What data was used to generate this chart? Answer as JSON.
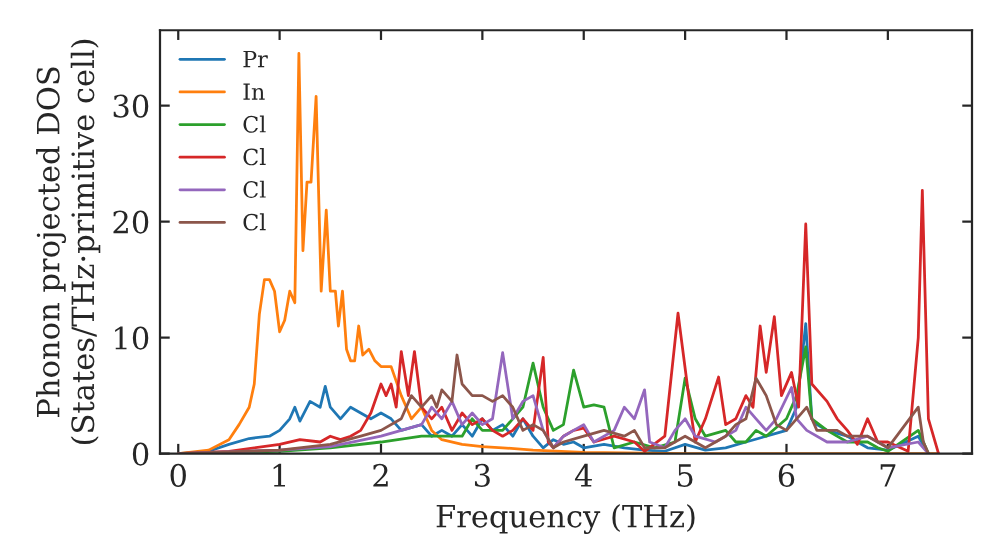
{
  "chart_data": {
    "type": "line",
    "xlabel": "Frequency (THz)",
    "ylabel": "Phonon projected DOS\n(States/THz·primitive cell)",
    "xlim": [
      -0.18,
      7.83
    ],
    "ylim": [
      0,
      36.5
    ],
    "xticks": [
      0,
      1,
      2,
      3,
      4,
      5,
      6,
      7
    ],
    "yticks": [
      0,
      10,
      20,
      30
    ],
    "grid": false,
    "legend": "top left",
    "series": [
      {
        "name": "Pr",
        "color": "#1f77b4",
        "x": [
          0,
          0.3,
          0.5,
          0.7,
          0.9,
          1.0,
          1.1,
          1.15,
          1.2,
          1.3,
          1.4,
          1.45,
          1.5,
          1.6,
          1.7,
          1.8,
          1.9,
          2.0,
          2.1,
          2.2,
          2.4,
          2.5,
          2.6,
          2.7,
          2.8,
          2.9,
          3.0,
          3.1,
          3.2,
          3.3,
          3.4,
          3.5,
          3.6,
          3.7,
          3.8,
          3.9,
          4.0,
          4.2,
          4.4,
          4.6,
          4.8,
          5.0,
          5.2,
          5.4,
          5.6,
          5.8,
          6.0,
          6.1,
          6.19,
          6.25,
          6.3,
          6.4,
          6.6,
          6.8,
          7.0,
          7.3,
          7.4
        ],
        "values": [
          0,
          0.2,
          0.8,
          1.3,
          1.5,
          2,
          3,
          4,
          2.8,
          4.5,
          4,
          5.8,
          4,
          3,
          4,
          3.5,
          3,
          3.5,
          3,
          2,
          2.5,
          1.5,
          2,
          1.5,
          2.5,
          1.5,
          3,
          2,
          2.5,
          1.5,
          3,
          1.5,
          0.5,
          1.2,
          0.8,
          1,
          0.5,
          0.8,
          0.5,
          0.3,
          0.2,
          0.8,
          0.3,
          0.5,
          1,
          1.5,
          2,
          4,
          11.2,
          3,
          2.5,
          2,
          1.5,
          0.5,
          0.3,
          1.5,
          0
        ]
      },
      {
        "name": "In",
        "color": "#ff7f0e",
        "x": [
          0,
          0.3,
          0.5,
          0.6,
          0.7,
          0.75,
          0.8,
          0.85,
          0.9,
          0.95,
          1.0,
          1.05,
          1.1,
          1.15,
          1.19,
          1.23,
          1.27,
          1.31,
          1.36,
          1.41,
          1.46,
          1.5,
          1.55,
          1.58,
          1.62,
          1.66,
          1.7,
          1.74,
          1.78,
          1.82,
          1.88,
          1.94,
          2.0,
          2.1,
          2.2,
          2.3,
          2.4,
          2.5,
          2.6,
          2.8,
          3.0,
          3.2,
          3.5,
          4.0,
          5.0,
          7.5
        ],
        "values": [
          0,
          0.3,
          1.2,
          2.5,
          4,
          6,
          12,
          15,
          15,
          14,
          10.5,
          11.5,
          14,
          13,
          34.5,
          17.5,
          23.4,
          23.4,
          30.8,
          14,
          21,
          14,
          14,
          11,
          14,
          9,
          8,
          8,
          11,
          8.5,
          9,
          8,
          7.5,
          7.5,
          5,
          3,
          4,
          2,
          1.2,
          0.8,
          0.6,
          0.5,
          0.3,
          0.1,
          0,
          0
        ]
      },
      {
        "name": "Cl",
        "color": "#2ca02c",
        "x": [
          0,
          1.0,
          1.5,
          2.0,
          2.4,
          2.6,
          2.8,
          2.9,
          3.0,
          3.2,
          3.3,
          3.4,
          3.5,
          3.6,
          3.7,
          3.8,
          3.9,
          4.0,
          4.1,
          4.2,
          4.3,
          4.5,
          4.7,
          4.9,
          5.0,
          5.1,
          5.2,
          5.4,
          5.5,
          5.6,
          5.7,
          5.8,
          6.0,
          6.1,
          6.19,
          6.25,
          6.4,
          6.6,
          6.8,
          6.9,
          7.0,
          7.3,
          7.4
        ],
        "values": [
          0,
          0.2,
          0.5,
          1,
          1.5,
          1.5,
          1.5,
          3,
          2,
          2,
          3,
          4,
          7.8,
          4,
          2,
          2.5,
          7.2,
          4,
          4.2,
          4,
          0.5,
          1,
          0.5,
          1,
          6.5,
          3,
          1.5,
          2,
          1,
          1,
          2,
          1.5,
          3,
          5,
          9.2,
          3,
          2,
          1,
          1,
          0.5,
          0.2,
          2,
          0
        ]
      },
      {
        "name": "Cl",
        "color": "#d62728",
        "x": [
          0,
          0.5,
          1.0,
          1.2,
          1.4,
          1.5,
          1.6,
          1.7,
          1.8,
          1.9,
          2.0,
          2.05,
          2.1,
          2.15,
          2.2,
          2.27,
          2.33,
          2.4,
          2.5,
          2.6,
          2.7,
          2.8,
          2.9,
          3.0,
          3.1,
          3.2,
          3.3,
          3.4,
          3.5,
          3.6,
          3.65,
          3.7,
          3.8,
          3.9,
          4.0,
          4.1,
          4.3,
          4.5,
          4.6,
          4.8,
          4.93,
          5.05,
          5.1,
          5.2,
          5.33,
          5.4,
          5.5,
          5.6,
          5.67,
          5.74,
          5.8,
          5.88,
          5.95,
          6.05,
          6.12,
          6.19,
          6.25,
          6.4,
          6.5,
          6.6,
          6.7,
          6.8,
          6.9,
          7.0,
          7.2,
          7.3,
          7.34,
          7.4,
          7.5
        ],
        "values": [
          0,
          0.2,
          0.8,
          1.2,
          1,
          1.5,
          1.2,
          1.5,
          2,
          3.5,
          6,
          5,
          6,
          4,
          8.8,
          5,
          8.8,
          4,
          3,
          4,
          2,
          3.5,
          2.5,
          3,
          2,
          1.5,
          2,
          3,
          2,
          8.3,
          1,
          0.5,
          1.5,
          2,
          2.2,
          1,
          1.5,
          1,
          0.2,
          1.5,
          12.1,
          4,
          1,
          3,
          6.6,
          2.5,
          3,
          5,
          4,
          11,
          7,
          11.8,
          5,
          7,
          4,
          19.8,
          6,
          4.5,
          3,
          2,
          0.8,
          3,
          1,
          1,
          0.2,
          10,
          22.7,
          3,
          0
        ]
      },
      {
        "name": "Cl",
        "color": "#9467bd",
        "x": [
          0,
          1.0,
          1.5,
          2.0,
          2.2,
          2.4,
          2.5,
          2.6,
          2.7,
          2.8,
          2.9,
          3.0,
          3.1,
          3.2,
          3.3,
          3.4,
          3.5,
          3.6,
          3.7,
          3.8,
          3.9,
          4.0,
          4.1,
          4.3,
          4.4,
          4.5,
          4.6,
          4.65,
          4.8,
          4.9,
          5.0,
          5.1,
          5.3,
          5.5,
          5.6,
          5.7,
          5.8,
          5.9,
          6.05,
          6.1,
          6.2,
          6.4,
          6.6,
          6.8,
          7.0,
          7.3,
          7.4
        ],
        "values": [
          0,
          0.3,
          0.6,
          1.5,
          2,
          2.5,
          4,
          3,
          4.5,
          2.5,
          3.5,
          2.5,
          3,
          8.7,
          3,
          4.5,
          5,
          2,
          0.5,
          1.5,
          2,
          2.5,
          1,
          2,
          4,
          3,
          5.5,
          1,
          0.5,
          2,
          3,
          1.5,
          1,
          2,
          4,
          3,
          2,
          3,
          5.7,
          3,
          2,
          1,
          1,
          1.5,
          0.5,
          1,
          0
        ]
      },
      {
        "name": "Cl",
        "color": "#8c564b",
        "x": [
          0,
          1.0,
          1.5,
          1.8,
          2.0,
          2.2,
          2.3,
          2.4,
          2.5,
          2.55,
          2.6,
          2.7,
          2.75,
          2.8,
          2.9,
          3.0,
          3.1,
          3.2,
          3.3,
          3.4,
          3.5,
          3.6,
          3.7,
          3.8,
          4.0,
          4.2,
          4.4,
          4.5,
          4.6,
          4.8,
          5.0,
          5.2,
          5.4,
          5.5,
          5.6,
          5.7,
          5.8,
          5.9,
          6.0,
          6.1,
          6.2,
          6.3,
          6.5,
          6.6,
          6.8,
          7.0,
          7.3,
          7.35,
          7.4
        ],
        "values": [
          0,
          0.3,
          0.8,
          1.5,
          2,
          3,
          5,
          4,
          5,
          4,
          5.5,
          4.5,
          8.5,
          6,
          5,
          5,
          4.5,
          5,
          4,
          2,
          2.5,
          2,
          0.5,
          1,
          1.5,
          2,
          1.5,
          2,
          0.5,
          0.5,
          1.5,
          0.5,
          1.5,
          2.5,
          3,
          6.5,
          5,
          2.5,
          2,
          3,
          4,
          2,
          2,
          1.5,
          1.5,
          0.5,
          4,
          1,
          0
        ]
      }
    ]
  }
}
